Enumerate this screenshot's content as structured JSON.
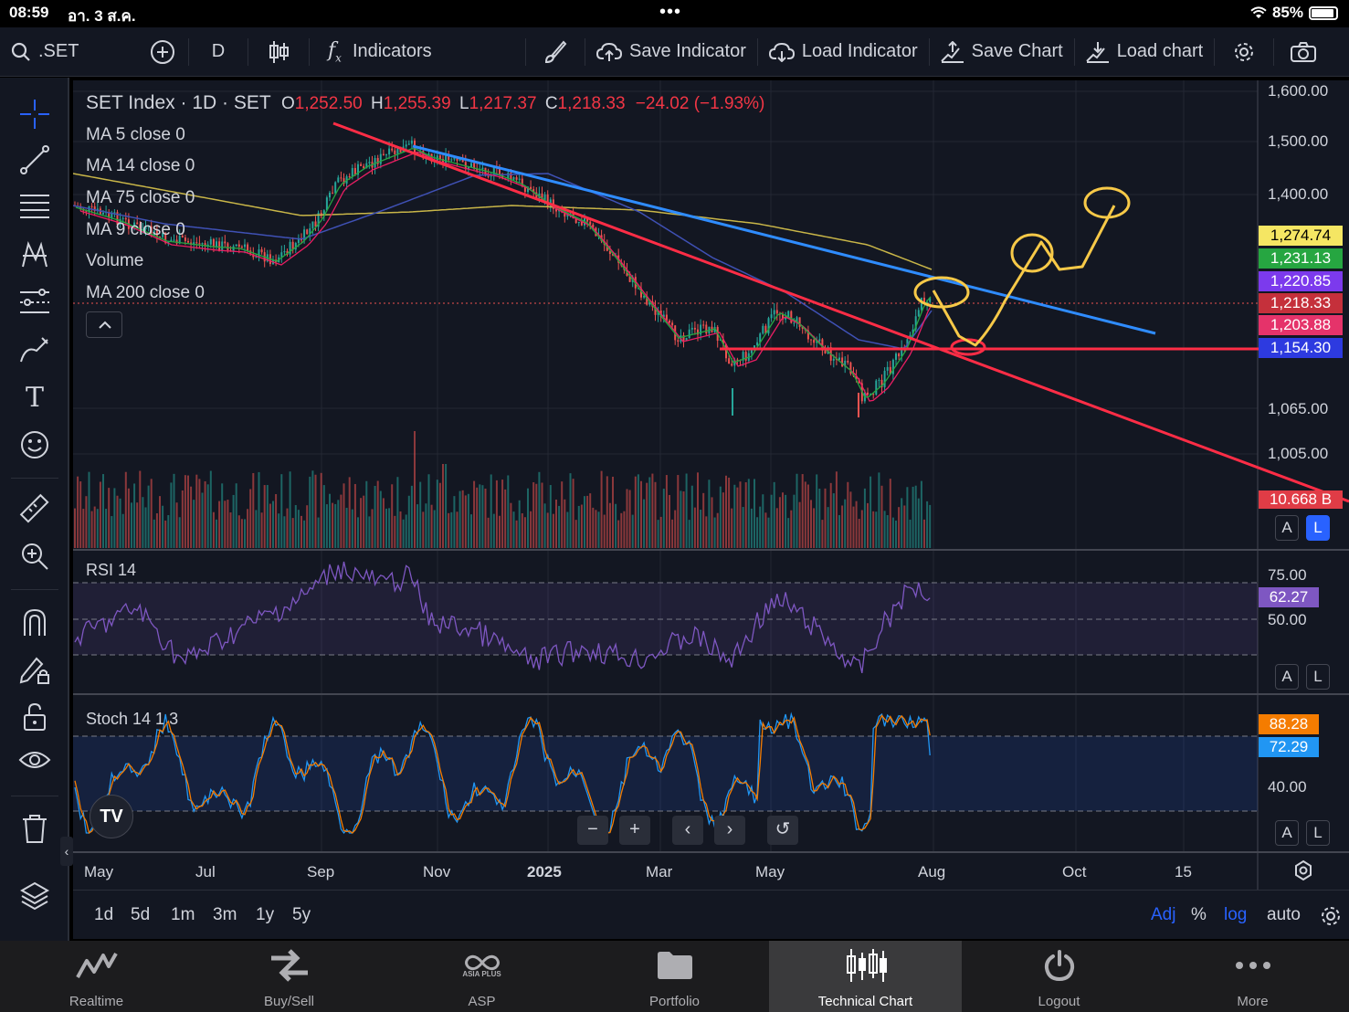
{
  "status_bar": {
    "time": "08:59",
    "date": "อา. 3 ส.ค.",
    "dots": "•••",
    "battery": "85%"
  },
  "toolbar": {
    "symbol": ".SET",
    "interval": "D",
    "indicators": "Indicators",
    "save_indicator": "Save Indicator",
    "load_indicator": "Load Indicator",
    "save_chart": "Save Chart",
    "load_chart": "Load chart"
  },
  "legend": {
    "title": "SET Index · 1D · SET",
    "o_label": "O",
    "o": "1,252.50",
    "h_label": "H",
    "h": "1,255.39",
    "l_label": "L",
    "l": "1,217.37",
    "c_label": "C",
    "c": "1,218.33",
    "change": "−24.02 (−1.93%)",
    "studies": [
      "MA 5 close 0",
      "MA 14 close 0",
      "MA 75 close 0",
      "MA 9 close 0",
      "Volume",
      "MA 200 close 0"
    ]
  },
  "price_axis": {
    "labels": [
      "1,600.00",
      "1,500.00",
      "1,400.00",
      "1,065.00",
      "1,005.00"
    ],
    "tags": [
      {
        "value": "1,274.74",
        "color": "#f5e663",
        "text_color": "#000000"
      },
      {
        "value": "1,231.13",
        "color": "#26a641",
        "text_color": "#ffffff"
      },
      {
        "value": "1,220.85",
        "color": "#7c3aed",
        "text_color": "#ffffff"
      },
      {
        "value": "1,218.33",
        "color": "#c5303b",
        "text_color": "#ffffff"
      },
      {
        "value": "1,203.88",
        "color": "#e5336a",
        "text_color": "#ffffff"
      },
      {
        "value": "1,154.30",
        "color": "#2d3ae0",
        "text_color": "#ffffff"
      }
    ],
    "volume_tag": "10.668 B"
  },
  "rsi": {
    "label": "RSI 14",
    "levels": [
      "75.00",
      "50.00"
    ],
    "value": "62.27",
    "color": "#7e57c2"
  },
  "stoch": {
    "label": "Stoch 14 1 3",
    "level": "40.00",
    "k": "88.28",
    "d": "72.29"
  },
  "scale_buttons": {
    "a": "A",
    "l": "L"
  },
  "time_axis": [
    "May",
    "Jul",
    "Sep",
    "Nov",
    "2025",
    "Mar",
    "May",
    "Aug",
    "Oct",
    "15"
  ],
  "ranges": [
    "1d",
    "5d",
    "1m",
    "3m",
    "1y",
    "5y"
  ],
  "bottom_options": {
    "adj": "Adj",
    "pct": "%",
    "log": "log",
    "auto": "auto"
  },
  "nav": {
    "zoom_out": "−",
    "zoom_in": "+",
    "prev": "‹",
    "next": "›",
    "reset": "↺"
  },
  "tabs": [
    {
      "label": "Realtime",
      "icon": "realtime-icon"
    },
    {
      "label": "Buy/Sell",
      "icon": "buy-sell-icon"
    },
    {
      "label": "ASP",
      "icon": "asp-logo-icon"
    },
    {
      "label": "Portfolio",
      "icon": "folder-icon"
    },
    {
      "label": "Technical Chart",
      "icon": "candlestick-icon"
    },
    {
      "label": "Logout",
      "icon": "power-icon"
    },
    {
      "label": "More",
      "icon": "more-icon"
    }
  ],
  "asp_logo_text": "ASIA PLUS",
  "tv_logo": "TV",
  "colors": {
    "bg": "#131722",
    "up": "#26a69a",
    "down": "#ef5350",
    "ma_fast": "#26a641",
    "ma_mid": "#e91e63",
    "ma_blue": "#3f51b5",
    "ma_yellow": "#c9b648",
    "trend_red": "#ff2d46",
    "trend_blue": "#2f8cff",
    "drawing_yellow": "#f7c948"
  }
}
